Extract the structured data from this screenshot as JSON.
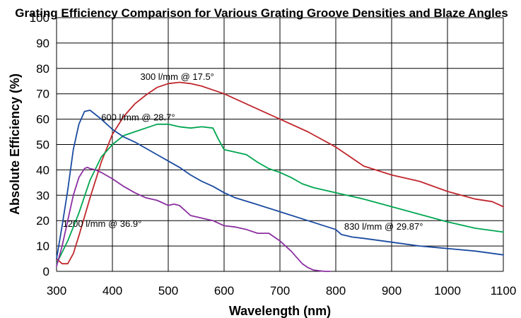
{
  "chart_data": {
    "type": "line",
    "title": "Grating Efficiency Comparison for Various Grating Groove Densities and Blaze Angles",
    "xlabel": "Wavelength (nm)",
    "ylabel": "Absolute Efficiency (%)",
    "xlim": [
      300,
      1100
    ],
    "ylim": [
      0,
      100
    ],
    "xticks": [
      300,
      400,
      500,
      600,
      700,
      800,
      900,
      1000,
      1100
    ],
    "yticks": [
      0,
      10,
      20,
      30,
      40,
      50,
      60,
      70,
      80,
      90,
      100
    ],
    "grid": true,
    "series": [
      {
        "name": "300 l/mm @ 17.5°",
        "color": "#c0272d",
        "label_at": [
          450,
          75.5
        ],
        "x": [
          300,
          310,
          320,
          330,
          340,
          360,
          380,
          400,
          420,
          440,
          460,
          480,
          500,
          520,
          540,
          560,
          580,
          600,
          650,
          700,
          750,
          800,
          850,
          900,
          950,
          1000,
          1050,
          1080,
          1100
        ],
        "y": [
          5,
          3,
          3,
          7,
          14,
          29,
          43,
          54,
          61,
          66,
          69.5,
          72.5,
          74,
          74.5,
          74,
          73,
          71.5,
          70,
          65,
          60,
          55,
          49,
          41.5,
          38,
          35.5,
          31.5,
          28.5,
          27.5,
          25.5
        ]
      },
      {
        "name": "600 l/mm @ 28.7°",
        "color": "#00a650",
        "label_at": [
          380,
          59.5
        ],
        "x": [
          300,
          320,
          340,
          360,
          380,
          400,
          420,
          440,
          460,
          480,
          500,
          520,
          540,
          560,
          580,
          590,
          600,
          620,
          640,
          660,
          680,
          700,
          720,
          740,
          760,
          780,
          800,
          850,
          900,
          950,
          1000,
          1050,
          1100
        ],
        "y": [
          3,
          12,
          23,
          36,
          45,
          50,
          53.5,
          55,
          56.5,
          58,
          58,
          57,
          56.5,
          57,
          56.5,
          52,
          48,
          47,
          46,
          43,
          40.5,
          39,
          37,
          34.5,
          33,
          32,
          31,
          28.5,
          25.5,
          22.5,
          19.5,
          17,
          15.5
        ]
      },
      {
        "name": "830 l/mm @ 29.87°",
        "color": "#1a4aa0",
        "label_at": [
          815,
          16.5
        ],
        "x": [
          300,
          310,
          320,
          330,
          340,
          350,
          360,
          380,
          400,
          420,
          440,
          460,
          480,
          500,
          520,
          540,
          560,
          580,
          600,
          620,
          650,
          700,
          750,
          800,
          810,
          830,
          850,
          900,
          950,
          1000,
          1050,
          1100
        ],
        "y": [
          5,
          18,
          32,
          48,
          58,
          63,
          63.5,
          60,
          56,
          53,
          51,
          48.5,
          46,
          43.5,
          41,
          38,
          35.5,
          33.5,
          31,
          29,
          27,
          23.5,
          20,
          16.5,
          14.5,
          13.5,
          13,
          11.5,
          10,
          9,
          8,
          6.5
        ]
      },
      {
        "name": "1200 l/mm @ 36.9°",
        "color": "#8b2fa0",
        "label_at": [
          311,
          17.5
        ],
        "x": [
          300,
          310,
          320,
          330,
          340,
          350,
          355,
          360,
          370,
          380,
          400,
          420,
          440,
          460,
          480,
          500,
          510,
          520,
          530,
          540,
          560,
          580,
          600,
          620,
          640,
          660,
          680,
          700,
          720,
          740,
          750,
          760,
          780,
          790
        ],
        "y": [
          2,
          10,
          20,
          30,
          37,
          40.5,
          41,
          40.5,
          40,
          39,
          36.5,
          33.5,
          31,
          29,
          28,
          26,
          26.5,
          26,
          24,
          22,
          21,
          20,
          18,
          17.5,
          16.5,
          15,
          15,
          12,
          8,
          3,
          1.5,
          0.5,
          0,
          0
        ]
      }
    ]
  }
}
